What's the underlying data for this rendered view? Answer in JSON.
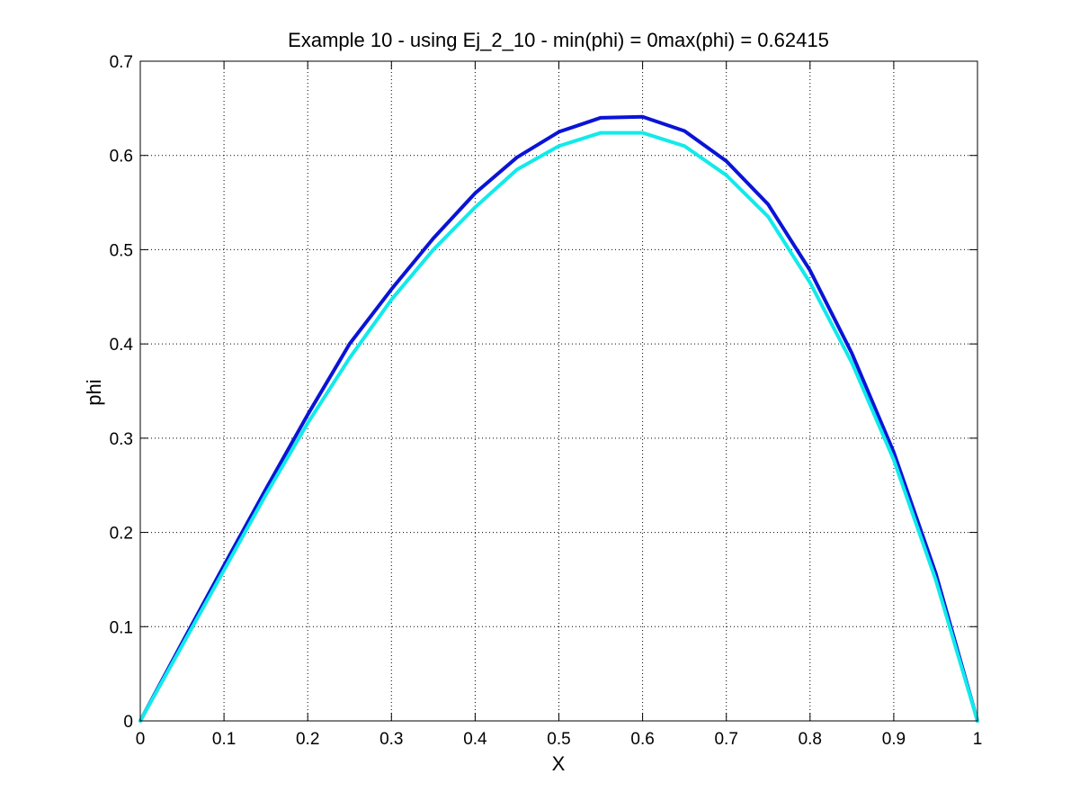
{
  "chart_data": {
    "type": "line",
    "title": "Example 10 - using Ej_2_10 - min(phi) = 0max(phi) = 0.62415",
    "xlabel": "X",
    "ylabel": "phi",
    "xlim": [
      0,
      1
    ],
    "ylim": [
      0,
      0.7
    ],
    "grid": true,
    "xticks": [
      0,
      0.1,
      0.2,
      0.3,
      0.4,
      0.5,
      0.6,
      0.7,
      0.8,
      0.9,
      1
    ],
    "xtick_labels": [
      "0",
      "0.1",
      "0.2",
      "0.3",
      "0.4",
      "0.5",
      "0.6",
      "0.7",
      "0.8",
      "0.9",
      "1"
    ],
    "yticks": [
      0,
      0.1,
      0.2,
      0.3,
      0.4,
      0.5,
      0.6,
      0.7
    ],
    "ytick_labels": [
      "0",
      "0.1",
      "0.2",
      "0.3",
      "0.4",
      "0.5",
      "0.6",
      "0.7"
    ],
    "x": [
      0,
      0.05,
      0.1,
      0.15,
      0.2,
      0.25,
      0.3,
      0.35,
      0.4,
      0.45,
      0.5,
      0.55,
      0.6,
      0.65,
      0.7,
      0.75,
      0.8,
      0.85,
      0.9,
      0.95,
      1
    ],
    "series": [
      {
        "color": "#0a14d6",
        "values": [
          0,
          0.083,
          0.165,
          0.246,
          0.325,
          0.4,
          0.458,
          0.512,
          0.56,
          0.598,
          0.625,
          0.64,
          0.641,
          0.626,
          0.594,
          0.548,
          0.478,
          0.39,
          0.285,
          0.157,
          0
        ]
      },
      {
        "color": "#12eaea",
        "values": [
          0,
          0.08,
          0.16,
          0.24,
          0.316,
          0.385,
          0.447,
          0.5,
          0.545,
          0.585,
          0.61,
          0.624,
          0.624,
          0.61,
          0.579,
          0.535,
          0.465,
          0.38,
          0.277,
          0.15,
          0
        ]
      }
    ]
  }
}
